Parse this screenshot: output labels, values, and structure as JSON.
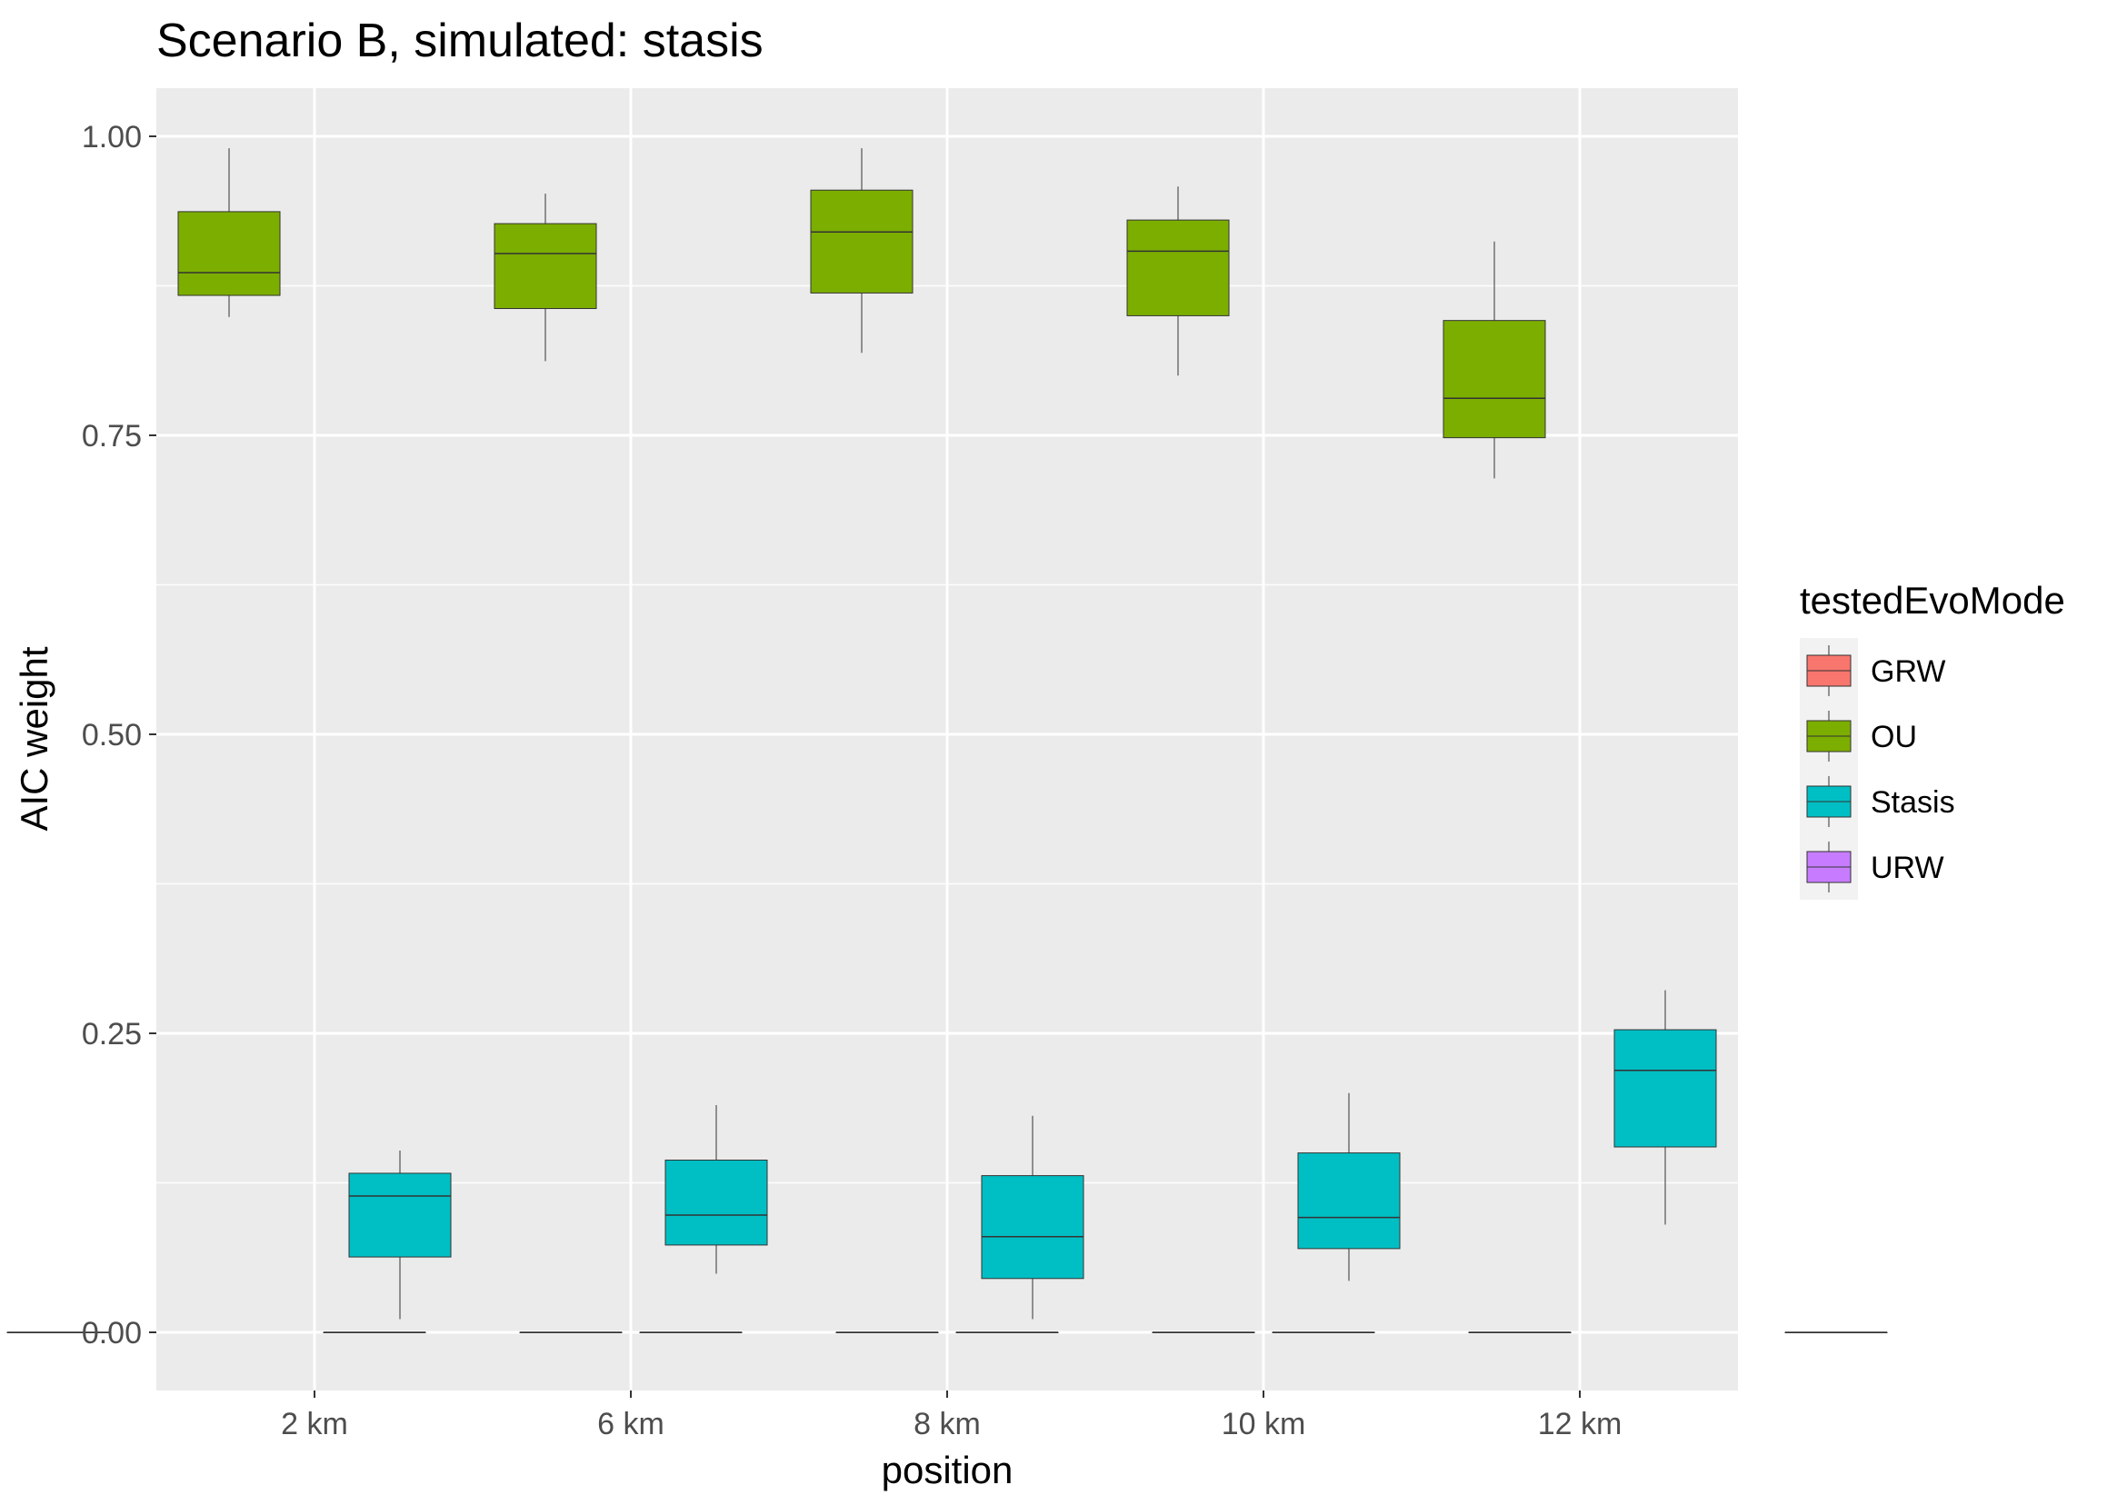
{
  "chart_data": {
    "type": "boxplot",
    "title": "Scenario B, simulated: stasis",
    "xlabel": "position",
    "ylabel": "AIC weight",
    "categories": [
      "2 km",
      "6 km",
      "8 km",
      "10 km",
      "12 km"
    ],
    "ylim": [
      -0.05,
      1.04
    ],
    "yticks": [
      0.0,
      0.25,
      0.5,
      0.75,
      1.0
    ],
    "ytick_labels": [
      "0.00",
      "0.25",
      "0.50",
      "0.75",
      "1.00"
    ],
    "grid": true,
    "legend": {
      "title": "testedEvoMode",
      "position": "right"
    },
    "series": [
      {
        "name": "GRW",
        "color": "#F8766D",
        "boxes": [
          {
            "min": 0.0,
            "q1": 0.0,
            "median": 0.0,
            "q3": 0.0,
            "max": 0.0
          },
          {
            "min": 0.0,
            "q1": 0.0,
            "median": 0.0,
            "q3": 0.0,
            "max": 0.0
          },
          {
            "min": 0.0,
            "q1": 0.0,
            "median": 0.0,
            "q3": 0.0,
            "max": 0.0
          },
          {
            "min": 0.0,
            "q1": 0.0,
            "median": 0.0,
            "q3": 0.0,
            "max": 0.0
          },
          {
            "min": 0.0,
            "q1": 0.0,
            "median": 0.0,
            "q3": 0.0,
            "max": 0.0
          }
        ]
      },
      {
        "name": "OU",
        "color": "#7CAE00",
        "boxes": [
          {
            "min": 0.849,
            "q1": 0.867,
            "median": 0.886,
            "q3": 0.937,
            "max": 0.99
          },
          {
            "min": 0.812,
            "q1": 0.856,
            "median": 0.902,
            "q3": 0.927,
            "max": 0.952
          },
          {
            "min": 0.819,
            "q1": 0.869,
            "median": 0.92,
            "q3": 0.955,
            "max": 0.99
          },
          {
            "min": 0.8,
            "q1": 0.85,
            "median": 0.904,
            "q3": 0.93,
            "max": 0.958
          },
          {
            "min": 0.714,
            "q1": 0.748,
            "median": 0.781,
            "q3": 0.846,
            "max": 0.912
          }
        ]
      },
      {
        "name": "Stasis",
        "color": "#00BFC4",
        "boxes": [
          {
            "min": 0.011,
            "q1": 0.063,
            "median": 0.114,
            "q3": 0.133,
            "max": 0.152
          },
          {
            "min": 0.049,
            "q1": 0.073,
            "median": 0.098,
            "q3": 0.144,
            "max": 0.19
          },
          {
            "min": 0.011,
            "q1": 0.045,
            "median": 0.08,
            "q3": 0.131,
            "max": 0.181
          },
          {
            "min": 0.043,
            "q1": 0.07,
            "median": 0.096,
            "q3": 0.15,
            "max": 0.2
          },
          {
            "min": 0.09,
            "q1": 0.155,
            "median": 0.219,
            "q3": 0.253,
            "max": 0.286
          }
        ]
      },
      {
        "name": "URW",
        "color": "#C77CFF",
        "boxes": [
          {
            "min": 0.0,
            "q1": 0.0,
            "median": 0.0,
            "q3": 0.0,
            "max": 0.0
          },
          {
            "min": 0.0,
            "q1": 0.0,
            "median": 0.0,
            "q3": 0.0,
            "max": 0.0
          },
          {
            "min": 0.0,
            "q1": 0.0,
            "median": 0.0,
            "q3": 0.0,
            "max": 0.0
          },
          {
            "min": 0.0,
            "q1": 0.0,
            "median": 0.0,
            "q3": 0.0,
            "max": 0.0
          },
          {
            "min": 0.0,
            "q1": 0.0,
            "median": 0.0,
            "q3": 0.0,
            "max": 0.0
          }
        ]
      }
    ]
  },
  "colors": {
    "panel_background": "#EBEBEB",
    "grid_major": "#FFFFFF",
    "box_outline": "#333333",
    "tick_text": "#4D4D4D"
  }
}
